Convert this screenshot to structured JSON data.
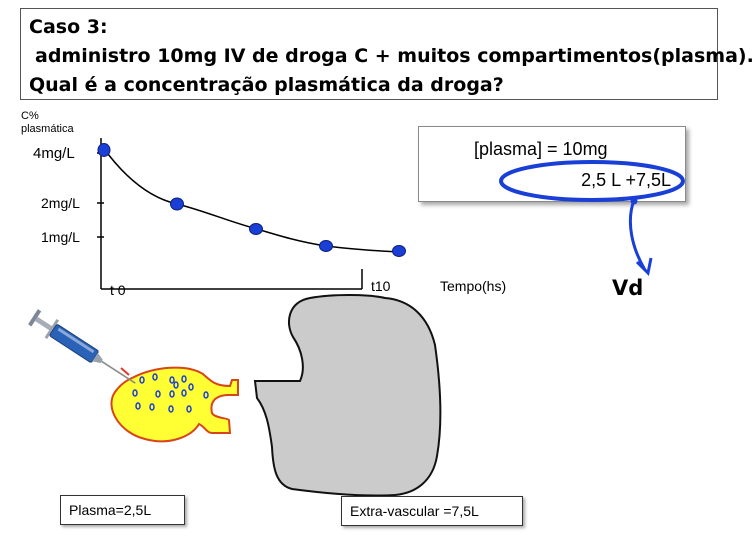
{
  "title": {
    "line1": "Caso 3:",
    "line2": "administro 10mg  IV  de droga C + muitos  compartimentos(plasma).",
    "line3": "Qual é a concentração plasmática  da droga?"
  },
  "graph": {
    "y_axis_title_line1": "C%",
    "y_axis_title_line2": "plasmática",
    "y_ticks": [
      "4mg/L",
      "2mg/L",
      "1mg/L"
    ],
    "x_tick_t0": "t 0",
    "x_tick_t10": "t10",
    "x_axis_label": "Tempo(hs)",
    "point_color": "#1a3fd6",
    "curve_color": "#000000"
  },
  "formula": {
    "line1": "[plasma] = 10mg",
    "line2": "2,5 L +7,5L",
    "highlight_color": "#1a3fd6"
  },
  "vd_label": "Vd",
  "compartments": {
    "plasma_label": "Plasma=2,5L",
    "extravascular_label": "Extra-vascular =7,5L",
    "plasma_fill": "#ffff33",
    "plasma_stroke": "#d9451a",
    "extravascular_fill": "#cbcbcb",
    "extravascular_stroke": "#111111",
    "particle_color": "#1a3fd6"
  },
  "syringe": {
    "icon": "syringe-icon",
    "barrel_color": "#2a62b8"
  }
}
